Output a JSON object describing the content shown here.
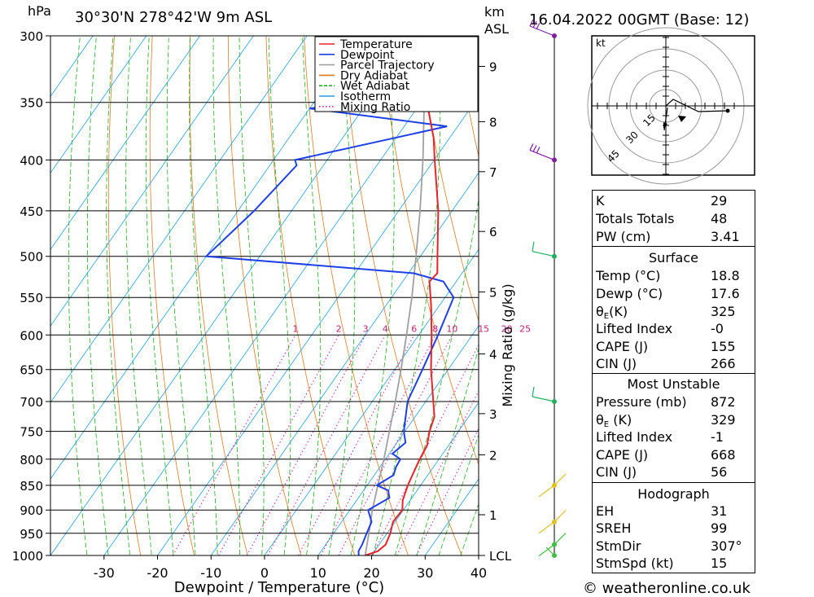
{
  "header": {
    "location": "30°30'N 278°42'W 9m ASL",
    "datetime": "16.04.2022 00GMT (Base: 12)",
    "left_unit": "hPa",
    "km_label": "km",
    "asl_label": "ASL"
  },
  "chart_data": {
    "type": "line",
    "subtype": "skew-T log-P sounding",
    "xlabel": "Dewpoint / Temperature (°C)",
    "ylabel": "hPa",
    "mixing_ratio_axis_label": "Mixing Ratio (g/kg)",
    "xlim": [
      -40,
      40
    ],
    "ylim": [
      1000,
      300
    ],
    "x_ticks": [
      -30,
      -20,
      -10,
      0,
      10,
      20,
      30,
      40
    ],
    "pressure_ticks": [
      300,
      350,
      400,
      450,
      500,
      550,
      600,
      650,
      700,
      750,
      800,
      850,
      900,
      950,
      1000
    ],
    "km_ticks": [
      "9",
      "8",
      "7",
      "6",
      "5",
      "4",
      "3",
      "2",
      "1",
      "LCL"
    ],
    "km_ticks_hpa": [
      322,
      366,
      411,
      472,
      543,
      627,
      720,
      792,
      910,
      1000
    ],
    "mixing_ratio_labels": [
      "1",
      "2",
      "3",
      "4",
      "6",
      "8",
      "10",
      "15",
      "20",
      "25"
    ],
    "mixing_ratio_values": [
      1,
      2,
      3,
      4,
      6,
      8,
      10,
      15,
      20,
      25
    ],
    "legend": {
      "entries": [
        {
          "name": "Temperature",
          "color": "#e8242a",
          "style": "solid"
        },
        {
          "name": "Dewpoint",
          "color": "#1f40e6",
          "style": "solid"
        },
        {
          "name": "Parcel Trajectory",
          "color": "#a0a0a0",
          "style": "solid"
        },
        {
          "name": "Dry Adiabat",
          "color": "#e0781e",
          "style": "solid"
        },
        {
          "name": "Wet Adiabat",
          "color": "#20b020",
          "style": "dashed"
        },
        {
          "name": "Isotherm",
          "color": "#20a0e0",
          "style": "solid"
        },
        {
          "name": "Mixing Ratio",
          "color": "#d020a0",
          "style": "dotted"
        }
      ],
      "placement": "top-right"
    },
    "series": [
      {
        "name": "Temperature",
        "p": [
          1000,
          990,
          975,
          950,
          925,
          900,
          880,
          850,
          825,
          800,
          775,
          750,
          725,
          700,
          650,
          600,
          560,
          530,
          520,
          500,
          450,
          400,
          380,
          350,
          300
        ],
        "t": [
          18.8,
          20.6,
          21.2,
          20.6,
          19.6,
          19.8,
          18.6,
          17.6,
          17.0,
          16.4,
          16.0,
          14.6,
          13.6,
          11.4,
          6.8,
          2.4,
          -1.6,
          -5.0,
          -4.6,
          -6.8,
          -12.6,
          -19.9,
          -23.0,
          -28.9,
          -39.7
        ]
      },
      {
        "name": "Dewpoint",
        "p": [
          1000,
          990,
          975,
          950,
          925,
          900,
          875,
          860,
          850,
          830,
          815,
          800,
          790,
          770,
          750,
          700,
          650,
          600,
          550,
          530,
          520,
          500,
          450,
          405,
          400,
          370,
          355,
          350,
          300
        ],
        "t": [
          17.6,
          17.0,
          16.8,
          16.2,
          15.6,
          13.4,
          15.8,
          14.6,
          11.8,
          13.6,
          13.0,
          12.8,
          10.6,
          11.6,
          9.8,
          6.6,
          5.2,
          3.6,
          1.6,
          -2.4,
          -9.0,
          -50.0,
          -47.0,
          -45.0,
          -46.0,
          -22.0,
          -50.0,
          -42.0,
          -57.0
        ]
      },
      {
        "name": "Parcel Trajectory",
        "p": [
          1000,
          950,
          900,
          850,
          800,
          750,
          700,
          650,
          600,
          550,
          500,
          450,
          400,
          350,
          300
        ],
        "t": [
          18.8,
          16.6,
          14.2,
          12.0,
          9.7,
          7.1,
          4.3,
          1.2,
          -2.3,
          -6.2,
          -10.8,
          -16.0,
          -22.1,
          -29.4,
          -38.2
        ]
      }
    ],
    "wind_barbs_hpa": [
      300,
      400,
      500,
      700,
      850,
      925,
      975,
      1000
    ],
    "hodograph": {
      "unit_label": "kt",
      "ring_labels": [
        "15",
        "30",
        "45"
      ]
    }
  },
  "indices": {
    "rows": [
      {
        "label": "K",
        "value": "29"
      },
      {
        "label": "Totals Totals",
        "value": "48"
      },
      {
        "label": "PW (cm)",
        "value": "3.41"
      }
    ]
  },
  "surface": {
    "title": "Surface",
    "temp_label": "Temp (°C)",
    "temp": "18.8",
    "dewp_label": "Dewp (°C)",
    "dewp": "17.6",
    "theta_sym": "θ",
    "theta_sub": "E",
    "theta_unit": "(K)",
    "theta": "325",
    "li_label": "Lifted Index",
    "li": "-0",
    "cape_label": "CAPE (J)",
    "cape": "155",
    "cin_label": "CIN (J)",
    "cin": "266"
  },
  "most_unstable": {
    "title": "Most Unstable",
    "pressure_label": "Pressure (mb)",
    "pressure": "872",
    "theta_sym": "θ",
    "theta_sub": "E",
    "theta_unit": " (K)",
    "theta": "329",
    "li_label": "Lifted Index",
    "li": "-1",
    "cape_label": "CAPE (J)",
    "cape": "668",
    "cin_label": "CIN (J)",
    "cin": "56"
  },
  "hodograph_table": {
    "title": "Hodograph",
    "rows": [
      {
        "label": "EH",
        "value": "31"
      },
      {
        "label": "SREH",
        "value": "99"
      },
      {
        "label": "StmDir",
        "value": "307°"
      },
      {
        "label": "StmSpd (kt)",
        "value": "15"
      }
    ]
  },
  "footer": {
    "credit": "© weatheronline.co.uk"
  }
}
